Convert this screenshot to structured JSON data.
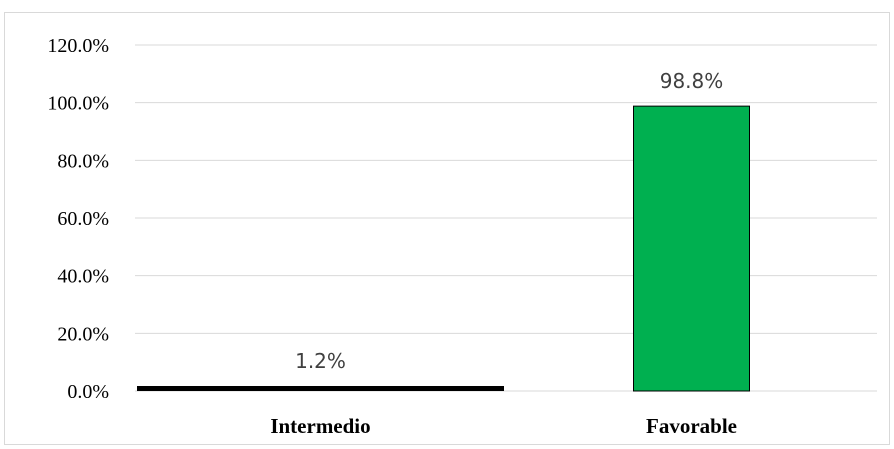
{
  "chart_data": {
    "type": "bar",
    "title": "",
    "xlabel": "",
    "ylabel": "",
    "categories": [
      "Intermedio",
      "Favorable"
    ],
    "values": [
      1.2,
      98.8
    ],
    "data_labels": [
      "1.2%",
      "98.8%"
    ],
    "bar_colors": [
      "#000000",
      "#00b050"
    ],
    "ylim": [
      0,
      120
    ],
    "yticks": [
      0,
      20,
      40,
      60,
      80,
      100,
      120
    ],
    "ytick_labels": [
      "0.0%",
      "20.0%",
      "40.0%",
      "60.0%",
      "80.0%",
      "100.0%",
      "120.0%"
    ],
    "grid": true,
    "legend": "none"
  }
}
